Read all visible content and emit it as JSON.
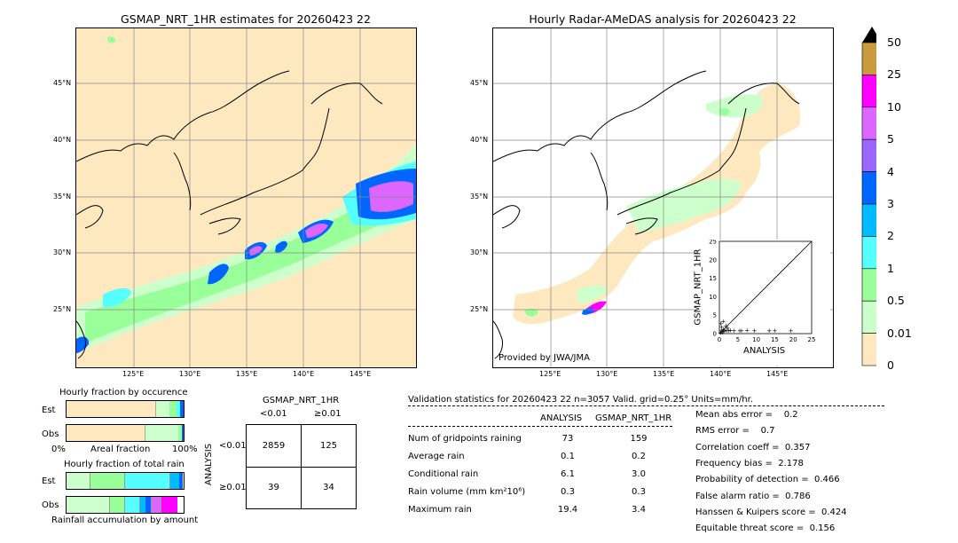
{
  "maps": {
    "left": {
      "title": "GSMAP_NRT_1HR estimates for 20260423 22"
    },
    "right": {
      "title": "Hourly Radar-AMeDAS analysis for 20260423 22",
      "credit": "Provided by JWA/JMA"
    },
    "lat_labels": [
      "45°N",
      "40°N",
      "35°N",
      "30°N",
      "25°N"
    ],
    "lon_labels": [
      "125°E",
      "130°E",
      "135°E",
      "140°E",
      "145°E"
    ]
  },
  "colorbar": {
    "levels": [
      "50",
      "25",
      "10",
      "5",
      "4",
      "3",
      "2",
      "1",
      "0.5",
      "0.01",
      "0"
    ],
    "colors": [
      "#ca9b3d",
      "#ff00ff",
      "#dd66ff",
      "#9a66ff",
      "#0066ff",
      "#00bbff",
      "#55ffff",
      "#99ff99",
      "#ccffcc",
      "#fde8bf"
    ]
  },
  "scatter": {
    "ylabel": "GSMAP_NRT_1HR",
    "xlabel": "ANALYSIS",
    "ticks": [
      "0",
      "5",
      "10",
      "15",
      "20",
      "25"
    ]
  },
  "chart_data": [
    {
      "type": "bar",
      "title": "Hourly fraction by occurence",
      "categories": [
        "Est",
        "Obs"
      ],
      "xlabel": "Areal fraction",
      "x_ticks": [
        "0%",
        "100%"
      ]
    },
    {
      "type": "bar",
      "title": "Hourly fraction of total rain",
      "categories": [
        "Est",
        "Obs"
      ],
      "xlabel": "Rainfall accumulation by amount"
    },
    {
      "type": "table",
      "title": "GSMAP_NRT_1HR",
      "col_headers": [
        "<0.01",
        "≥0.01"
      ],
      "row_axis": "ANALYSIS",
      "row_headers": [
        "<0.01",
        "≥0.01"
      ],
      "cells": [
        [
          "2859",
          "125"
        ],
        [
          "39",
          "34"
        ]
      ]
    },
    {
      "type": "scatter",
      "xlabel": "ANALYSIS",
      "ylabel": "GSMAP_NRT_1HR",
      "xlim": [
        0,
        25
      ],
      "ylim": [
        0,
        25
      ],
      "points": [
        [
          0.3,
          0.3
        ],
        [
          0.5,
          0.8
        ],
        [
          0.8,
          0.4
        ],
        [
          1.0,
          1.2
        ],
        [
          1.2,
          0.6
        ],
        [
          1.5,
          1.0
        ],
        [
          0.6,
          1.8
        ],
        [
          2.0,
          0.9
        ],
        [
          2.5,
          0.8
        ],
        [
          3.0,
          1.0
        ],
        [
          4.0,
          0.9
        ],
        [
          5.5,
          0.8
        ],
        [
          6.0,
          0.9
        ],
        [
          7.5,
          1.0
        ],
        [
          9.5,
          0.8
        ],
        [
          13.5,
          0.9
        ],
        [
          15.0,
          0.8
        ],
        [
          19.4,
          0.9
        ],
        [
          1.8,
          2.2
        ],
        [
          0.4,
          2.8
        ],
        [
          1.0,
          3.4
        ],
        [
          2.2,
          1.6
        ]
      ]
    }
  ],
  "validation": {
    "header": "Validation statistics for 20260423 22  n=3057 Valid. grid=0.25° Units=mm/hr.",
    "col1": "ANALYSIS",
    "col2": "GSMAP_NRT_1HR",
    "rows": [
      {
        "label": "Num of gridpoints raining",
        "a": "73",
        "b": "159"
      },
      {
        "label": "Average rain",
        "a": "0.1",
        "b": "0.2"
      },
      {
        "label": "Conditional rain",
        "a": "6.1",
        "b": "3.0"
      },
      {
        "label": "Rain volume (mm km²10⁶)",
        "a": "0.3",
        "b": "0.3"
      },
      {
        "label": "Maximum rain",
        "a": "19.4",
        "b": "3.4"
      }
    ],
    "scores": [
      "Mean abs error =    0.2",
      "RMS error =    0.7",
      "Correlation coeff =  0.357",
      "Frequency bias =  2.178",
      "Probability of detection =  0.466",
      "False alarm ratio =  0.786",
      "Hanssen & Kuipers score =  0.424",
      "Equitable threat score =  0.156"
    ]
  }
}
